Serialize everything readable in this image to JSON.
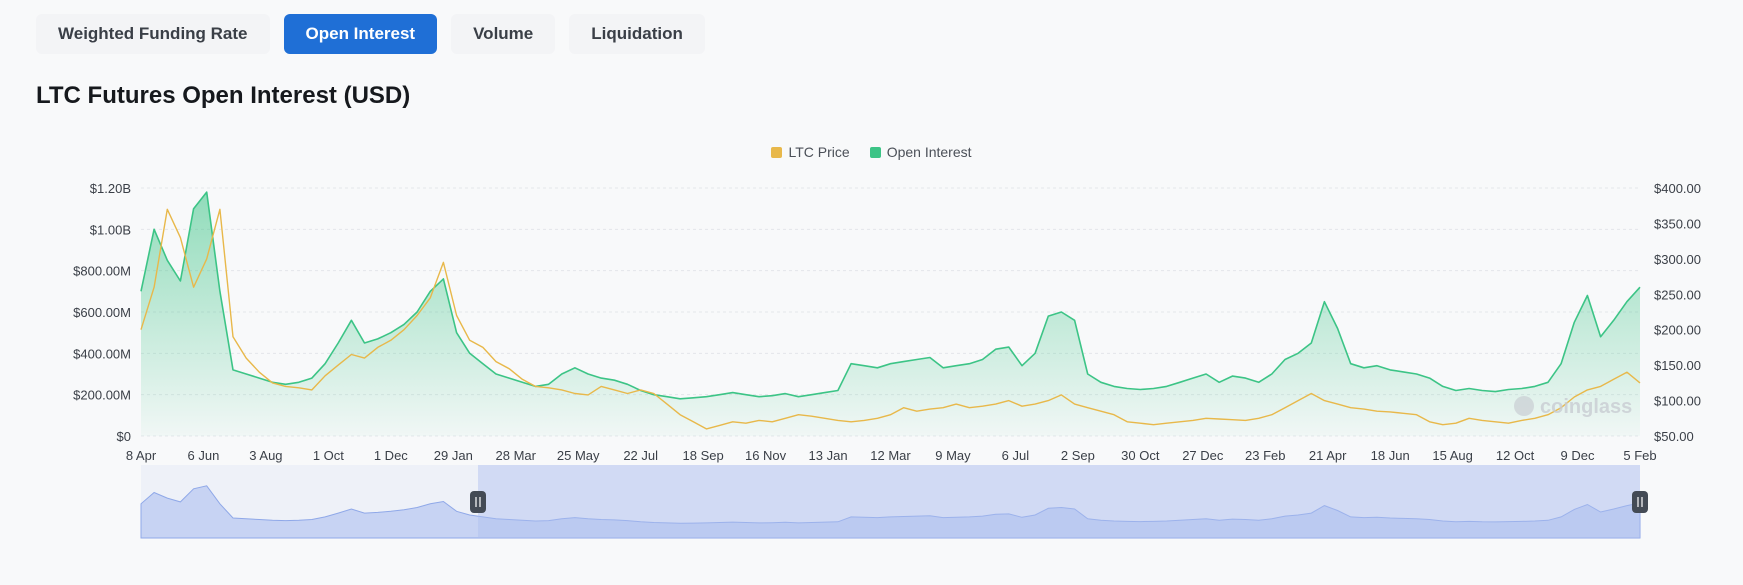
{
  "tabs": [
    {
      "label": "Weighted Funding Rate",
      "active": false
    },
    {
      "label": "Open Interest",
      "active": true
    },
    {
      "label": "Volume",
      "active": false
    },
    {
      "label": "Liquidation",
      "active": false
    }
  ],
  "title": "LTC Futures Open Interest (USD)",
  "watermark": "coinglass",
  "colors": {
    "accent": "#1f6fd6",
    "price": "#e8b84a",
    "open_interest": "#3cc486",
    "navigator": "#8fa8e8"
  },
  "icons": [
    "coinglass-logo-icon",
    "slider-handle-icon"
  ],
  "chart_data": {
    "type": "line",
    "legend_position": "top-center",
    "grid": "horizontal dashed",
    "x_ticks": [
      "8 Apr",
      "6 Jun",
      "3 Aug",
      "1 Oct",
      "1 Dec",
      "29 Jan",
      "28 Mar",
      "25 May",
      "22 Jul",
      "18 Sep",
      "16 Nov",
      "13 Jan",
      "12 Mar",
      "9 May",
      "6 Jul",
      "2 Sep",
      "30 Oct",
      "27 Dec",
      "23 Feb",
      "21 Apr",
      "18 Jun",
      "15 Aug",
      "12 Oct",
      "9 Dec",
      "5 Feb"
    ],
    "y_left": {
      "ticks": [
        "$0",
        "$200.00M",
        "$400.00M",
        "$600.00M",
        "$800.00M",
        "$1.00B",
        "$1.20B"
      ],
      "range": [
        0,
        1200
      ]
    },
    "y_right": {
      "ticks": [
        "$50.00",
        "$100.00",
        "$150.00",
        "$200.00",
        "$250.00",
        "$300.00",
        "$350.00",
        "$400.00"
      ],
      "range": [
        50,
        400
      ]
    },
    "series": [
      {
        "name": "LTC Price",
        "axis": "right",
        "color": "#e8b84a",
        "values": [
          200,
          260,
          370,
          330,
          260,
          300,
          370,
          190,
          160,
          140,
          125,
          120,
          118,
          115,
          135,
          150,
          165,
          160,
          175,
          185,
          200,
          220,
          245,
          295,
          220,
          185,
          175,
          155,
          145,
          130,
          120,
          118,
          115,
          110,
          108,
          120,
          115,
          110,
          115,
          110,
          95,
          80,
          70,
          60,
          65,
          70,
          68,
          72,
          70,
          75,
          80,
          78,
          75,
          72,
          70,
          72,
          75,
          80,
          90,
          85,
          88,
          90,
          95,
          90,
          92,
          95,
          100,
          92,
          95,
          100,
          108,
          95,
          90,
          85,
          80,
          70,
          68,
          66,
          68,
          70,
          72,
          75,
          74,
          73,
          72,
          75,
          80,
          90,
          100,
          110,
          100,
          95,
          90,
          88,
          85,
          84,
          82,
          80,
          70,
          66,
          68,
          75,
          72,
          70,
          68,
          72,
          75,
          80,
          90,
          105,
          115,
          120,
          130,
          140,
          125
        ]
      },
      {
        "name": "Open Interest",
        "axis": "left",
        "color": "#3cc486",
        "values": [
          700,
          1000,
          850,
          750,
          1100,
          1180,
          700,
          320,
          300,
          280,
          260,
          250,
          260,
          280,
          350,
          450,
          560,
          450,
          470,
          500,
          540,
          600,
          700,
          760,
          500,
          400,
          350,
          300,
          280,
          260,
          240,
          250,
          300,
          330,
          300,
          280,
          270,
          250,
          220,
          200,
          190,
          180,
          185,
          190,
          200,
          210,
          200,
          190,
          195,
          205,
          190,
          200,
          210,
          220,
          350,
          340,
          330,
          350,
          360,
          370,
          380,
          330,
          340,
          350,
          370,
          420,
          430,
          340,
          400,
          580,
          600,
          560,
          300,
          260,
          240,
          230,
          225,
          230,
          240,
          260,
          280,
          300,
          260,
          290,
          280,
          260,
          300,
          370,
          400,
          450,
          650,
          520,
          350,
          330,
          340,
          320,
          310,
          300,
          280,
          240,
          220,
          230,
          220,
          215,
          225,
          230,
          240,
          260,
          350,
          550,
          680,
          480,
          560,
          650,
          720
        ]
      }
    ]
  }
}
